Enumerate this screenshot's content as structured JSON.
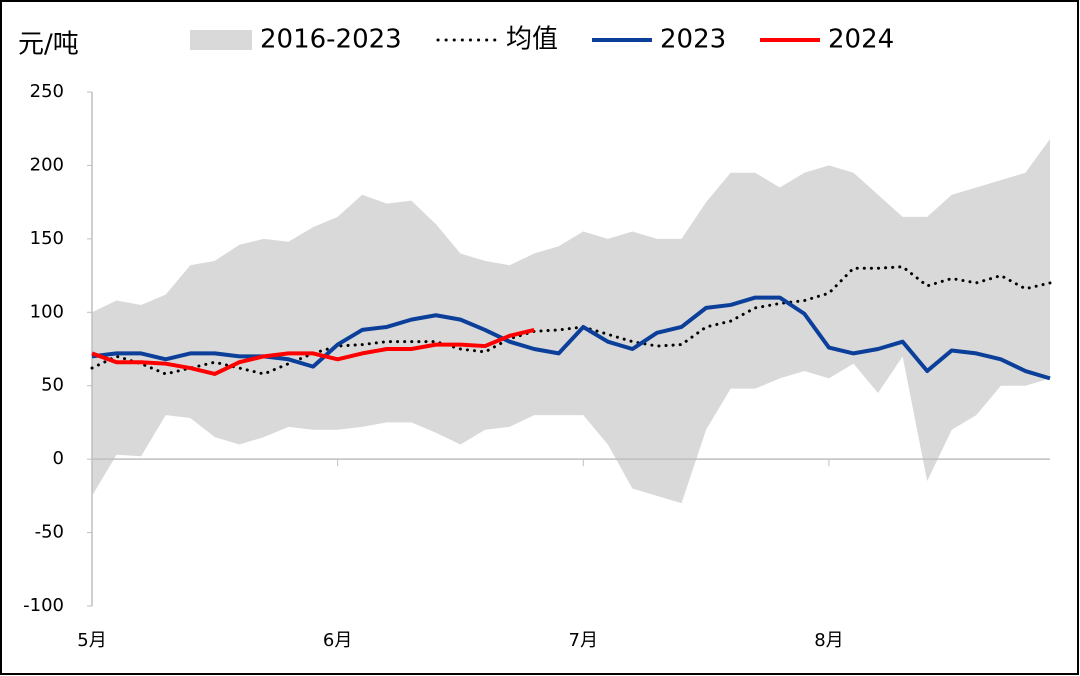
{
  "chart_data": {
    "type": "line",
    "y_label": "元/吨",
    "categories": [
      "5月",
      null,
      null,
      null,
      null,
      null,
      null,
      null,
      null,
      null,
      "6月",
      null,
      null,
      null,
      null,
      null,
      null,
      null,
      null,
      null,
      "7月",
      null,
      null,
      null,
      null,
      null,
      null,
      null,
      null,
      null,
      "8月",
      null,
      null,
      null,
      null,
      null,
      null,
      null,
      null,
      null
    ],
    "ylim": [
      -100,
      250
    ],
    "yticks": [
      -100,
      -50,
      0,
      50,
      100,
      150,
      200,
      250
    ],
    "grid": false,
    "band": {
      "name": "2016-2023",
      "color": "#d9d9d9",
      "upper": [
        100,
        108,
        105,
        112,
        132,
        135,
        146,
        150,
        148,
        158,
        165,
        180,
        174,
        176,
        160,
        140,
        135,
        132,
        140,
        145,
        155,
        150,
        155,
        150,
        150,
        175,
        195,
        195,
        185,
        195,
        200,
        195,
        180,
        165,
        165,
        180,
        185,
        190,
        195,
        218
      ],
      "lower": [
        -25,
        3,
        2,
        30,
        28,
        15,
        10,
        15,
        22,
        20,
        20,
        22,
        25,
        25,
        18,
        10,
        20,
        22,
        30,
        30,
        30,
        10,
        -20,
        -25,
        -30,
        20,
        48,
        48,
        55,
        60,
        55,
        65,
        45,
        70,
        -15,
        20,
        30,
        50,
        50,
        55
      ]
    },
    "series": [
      {
        "name": "均值",
        "color": "#000000",
        "dotted": true,
        "values": [
          62,
          70,
          65,
          58,
          62,
          66,
          62,
          58,
          65,
          72,
          77,
          78,
          80,
          80,
          80,
          75,
          73,
          82,
          87,
          88,
          90,
          85,
          80,
          77,
          78,
          90,
          94,
          103,
          106,
          108,
          113,
          130,
          130,
          131,
          118,
          123,
          120,
          125,
          116,
          120
        ]
      },
      {
        "name": "2023",
        "color": "#0b3f9a",
        "values": [
          70,
          72,
          72,
          68,
          72,
          72,
          70,
          70,
          68,
          63,
          78,
          88,
          90,
          95,
          98,
          95,
          88,
          80,
          75,
          72,
          90,
          80,
          75,
          86,
          90,
          103,
          105,
          110,
          110,
          99,
          76,
          72,
          75,
          80,
          60,
          74,
          72,
          68,
          60,
          55
        ]
      },
      {
        "name": "2024",
        "color": "#ff0000",
        "values": [
          72,
          66,
          66,
          65,
          62,
          58,
          66,
          70,
          72,
          72,
          68,
          72,
          75,
          75,
          78,
          78,
          77,
          84,
          88,
          null,
          null,
          null,
          null,
          null,
          null,
          null,
          null,
          null,
          null,
          null,
          null,
          null,
          null,
          null,
          null,
          null,
          null,
          null,
          null,
          null
        ]
      }
    ]
  }
}
